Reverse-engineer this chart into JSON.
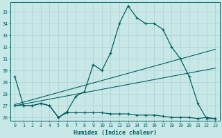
{
  "xlabel": "Humidex (Indice chaleur)",
  "bg_color": "#c8e8e8",
  "grid_color": "#b0d0d0",
  "line_color": "#006060",
  "xlim": [
    -0.5,
    23.5
  ],
  "ylim": [
    25.7,
    35.8
  ],
  "yticks": [
    26,
    27,
    28,
    29,
    30,
    31,
    32,
    33,
    34,
    35
  ],
  "xticks": [
    0,
    1,
    2,
    3,
    4,
    5,
    6,
    7,
    8,
    9,
    10,
    11,
    12,
    13,
    14,
    15,
    16,
    17,
    18,
    19,
    20,
    21,
    22,
    23
  ],
  "series_main": {
    "x": [
      0,
      1,
      2,
      3,
      4,
      5,
      6,
      7,
      8,
      9,
      10,
      11,
      12,
      13,
      14,
      15,
      16,
      17,
      18,
      19,
      20,
      21,
      22,
      23
    ],
    "y": [
      29.5,
      27.0,
      27.0,
      27.2,
      27.0,
      26.0,
      26.5,
      27.8,
      28.2,
      30.5,
      30.0,
      31.5,
      34.0,
      35.5,
      34.5,
      34.0,
      34.0,
      33.5,
      32.0,
      31.0,
      29.5,
      27.2,
      25.9,
      25.9
    ]
  },
  "series_flat": {
    "x": [
      0,
      1,
      2,
      3,
      4,
      5,
      6,
      7,
      8,
      9,
      10,
      11,
      12,
      13,
      14,
      15,
      16,
      17,
      18,
      19,
      20,
      21,
      22,
      23
    ],
    "y": [
      27.0,
      27.0,
      27.0,
      27.2,
      27.0,
      26.0,
      26.4,
      26.4,
      26.4,
      26.4,
      26.4,
      26.3,
      26.3,
      26.3,
      26.2,
      26.2,
      26.2,
      26.1,
      26.0,
      26.0,
      26.0,
      25.9,
      26.0,
      25.9
    ]
  },
  "trend1": {
    "x": [
      0,
      23
    ],
    "y": [
      27.1,
      31.8
    ]
  },
  "trend2": {
    "x": [
      0,
      23
    ],
    "y": [
      27.0,
      30.2
    ]
  }
}
